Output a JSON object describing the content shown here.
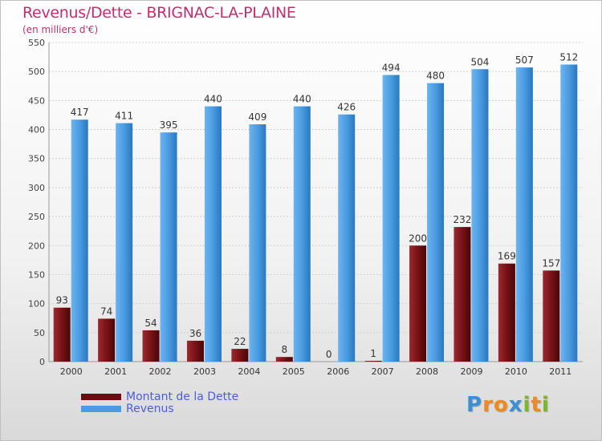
{
  "chart_data": {
    "type": "bar",
    "title": "Revenus/Dette - BRIGNAC-LA-PLAINE",
    "subtitle": "(en milliers d'€)",
    "categories": [
      "2000",
      "2001",
      "2002",
      "2003",
      "2004",
      "2005",
      "2006",
      "2007",
      "2008",
      "2009",
      "2010",
      "2011"
    ],
    "series": [
      {
        "name": "Montant de la Dette",
        "color": "#7a1418",
        "values": [
          93,
          74,
          54,
          36,
          22,
          8,
          0,
          1,
          200,
          232,
          169,
          157
        ]
      },
      {
        "name": "Revenus",
        "color": "#4a9be0",
        "values": [
          417,
          411,
          395,
          440,
          409,
          440,
          426,
          494,
          480,
          504,
          507,
          512
        ]
      }
    ],
    "ylim": [
      0,
      550
    ],
    "yticks": [
      0,
      50,
      100,
      150,
      200,
      250,
      300,
      350,
      400,
      450,
      500,
      550
    ],
    "grid": true,
    "legend_position": "bottom-left"
  },
  "brand": {
    "text": "Proxiti",
    "letters": [
      {
        "char": "P",
        "color": "#3a8fd6"
      },
      {
        "char": "r",
        "color": "#f08a1c"
      },
      {
        "char": "o",
        "color": "#f08a1c"
      },
      {
        "char": "x",
        "color": "#3a8fd6"
      },
      {
        "char": "i",
        "color": "#7ab828"
      },
      {
        "char": "t",
        "color": "#f08a1c"
      },
      {
        "char": "i",
        "color": "#7ab828"
      }
    ]
  }
}
